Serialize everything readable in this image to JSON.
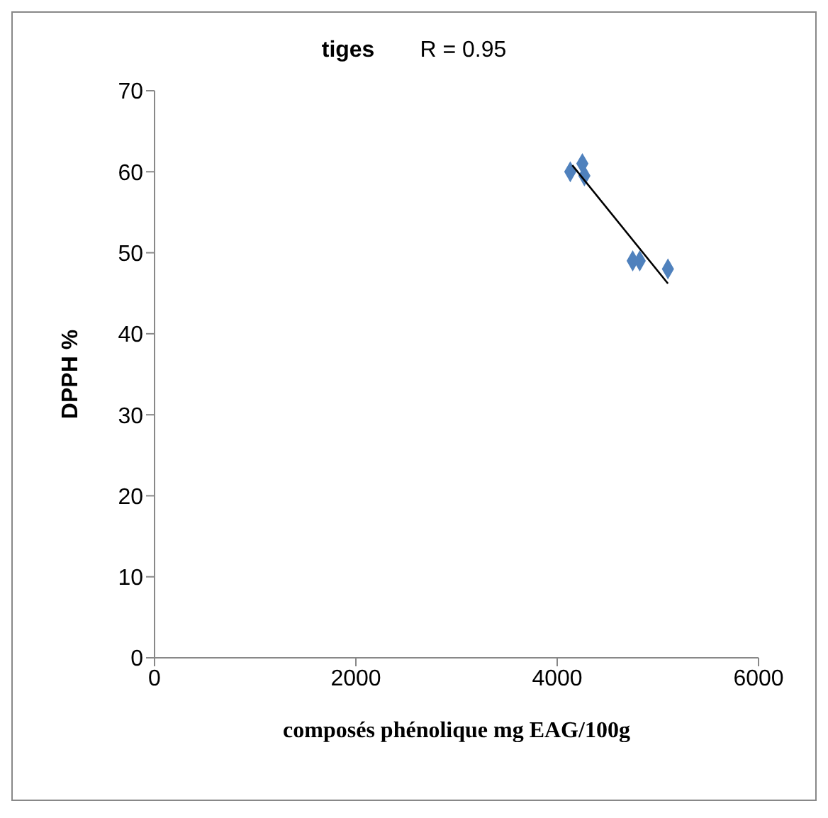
{
  "chart_data": {
    "type": "scatter",
    "title": "tiges",
    "annotations": [
      "R = 0.95"
    ],
    "xlabel": "composés phénolique mg EAG/100g",
    "ylabel": "DPPH %",
    "xlim": [
      0,
      6000
    ],
    "xticks": [
      0,
      2000,
      4000,
      6000
    ],
    "ylim": [
      0,
      70
    ],
    "yticks": [
      0,
      10,
      20,
      30,
      40,
      50,
      60,
      70
    ],
    "grid": false,
    "legend": false,
    "marker": "diamond",
    "series": [
      {
        "color": "#4f81bd",
        "x": [
          4130,
          4250,
          4270,
          4750,
          4820,
          5100
        ],
        "values": [
          60,
          61,
          59.5,
          49,
          49,
          48
        ]
      },
      {
        "type": "line",
        "color": "#000000",
        "marker": "none",
        "line_style": "solid",
        "x": [
          4150,
          5100
        ],
        "values": [
          60.8,
          46.2
        ]
      }
    ]
  }
}
